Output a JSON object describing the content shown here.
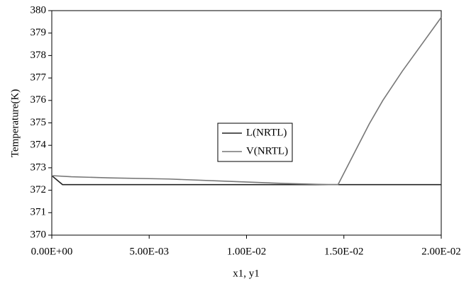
{
  "chart_data": {
    "type": "line",
    "xlabel": "x1, y1",
    "ylabel": "Temperature(K)",
    "xlim": [
      0,
      0.02
    ],
    "ylim": [
      370,
      380
    ],
    "xticks": [
      {
        "value": 0,
        "label": "0.00E+00"
      },
      {
        "value": 0.005,
        "label": "5.00E-03"
      },
      {
        "value": 0.01,
        "label": "1.00E-02"
      },
      {
        "value": 0.015,
        "label": "1.50E-02"
      },
      {
        "value": 0.02,
        "label": "2.00E-02"
      }
    ],
    "yticks": [
      370,
      371,
      372,
      373,
      374,
      375,
      376,
      377,
      378,
      379,
      380
    ],
    "legend": "center",
    "series": [
      {
        "name": "L(NRTL)",
        "color": "#222222",
        "x": [
          0,
          0.00055,
          0.02
        ],
        "values": [
          372.65,
          372.25,
          372.25
        ]
      },
      {
        "name": "V(NRTL)",
        "color": "#777777",
        "x": [
          0,
          0.001,
          0.003,
          0.006,
          0.009,
          0.012,
          0.0142,
          0.0147,
          0.0155,
          0.0163,
          0.017,
          0.018,
          0.019,
          0.02
        ],
        "values": [
          372.65,
          372.6,
          372.55,
          372.5,
          372.4,
          372.3,
          372.25,
          372.25,
          373.6,
          374.95,
          376.0,
          377.3,
          378.5,
          379.7
        ]
      }
    ]
  }
}
